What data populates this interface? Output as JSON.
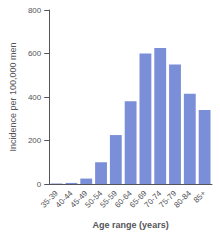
{
  "chart_data": {
    "type": "bar",
    "categories": [
      "35-39",
      "40-44",
      "45-49",
      "50-54",
      "55-59",
      "60-64",
      "65-69",
      "70-74",
      "75-79",
      "80-84",
      "85+"
    ],
    "values": [
      2,
      5,
      25,
      100,
      225,
      380,
      600,
      625,
      550,
      415,
      340
    ],
    "color": "#7b8ed8",
    "xlabel": "Age range (years)",
    "ylabel": "Incidence per 100,000 men",
    "ylim": [
      0,
      800
    ],
    "yticks": [
      0,
      200,
      400,
      600,
      800
    ],
    "grid": false
  }
}
